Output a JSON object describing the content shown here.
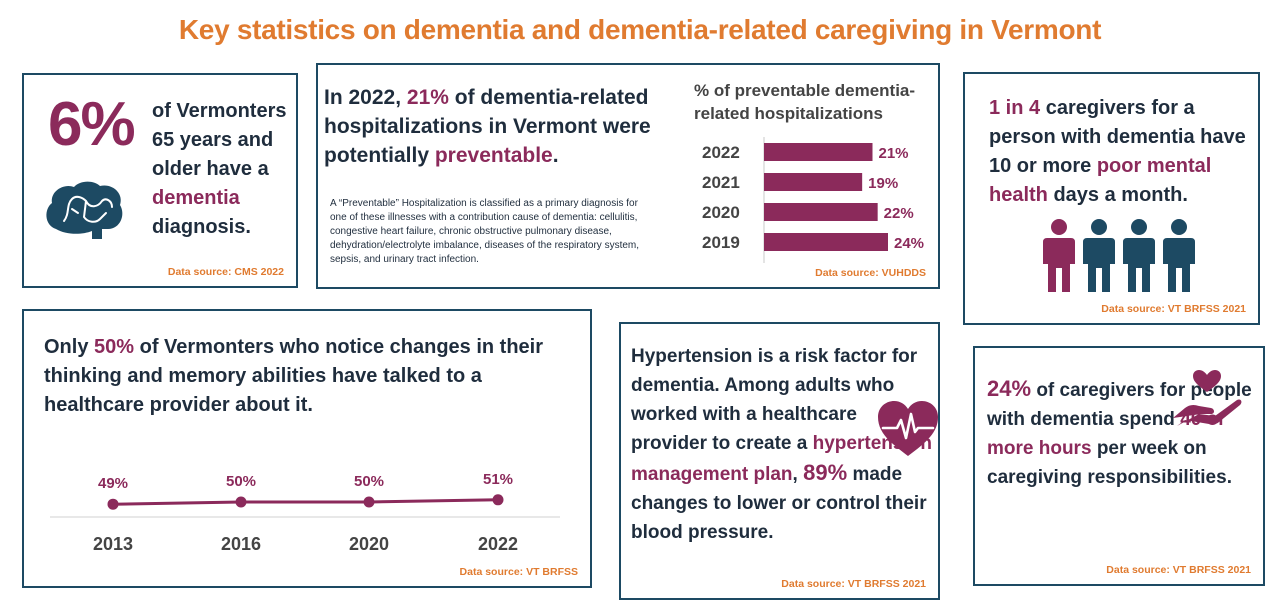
{
  "title": "Key statistics on dementia and dementia-related caregiving in Vermont",
  "colors": {
    "accent": "#e07b30",
    "plum": "#8b2a5b",
    "navy": "#1d4a63"
  },
  "card1": {
    "big": "6%",
    "l1": "of Vermonters",
    "l2": "65 years and",
    "l3": "older have a",
    "hl": "dementia",
    "l4": "diagnosis.",
    "icon": "brain-icon",
    "source": "Data source: CMS 2022"
  },
  "card2": {
    "h_pre": "In 2022,",
    "h_pct": "21%",
    "h_mid": "of dementia-related hospitalizations in Vermont were potentially",
    "h_hl": "preventable",
    "h_end": ".",
    "note": "A “Preventable” Hospitalization is classified as a primary diagnosis for one of these illnesses with a contribution cause of dementia: cellulitis, congestive heart failure, chronic obstructive pulmonary disease, dehydration/electrolyte imbalance, diseases of the respiratory system, sepsis, and urinary tract infection.",
    "chart_title": "% of preventable dementia-related hospitalizations",
    "source": "Data source: VUHDDS"
  },
  "card3": {
    "hl1": "1 in 4",
    "t1": "caregivers for a person with dementia have 10 or more",
    "hl2": "poor mental health",
    "t2": "days a month.",
    "icon": "people-icon",
    "source": "Data source: VT BRFSS 2021"
  },
  "card4": {
    "t1": "Only",
    "pct": "50%",
    "t2": "of Vermonters who notice changes in their thinking and memory abilities have talked to a healthcare provider about  it.",
    "source": "Data source: VT BRFSS"
  },
  "card5": {
    "t1": "Hypertension is a risk factor for dementia. Among adults who worked with a healthcare provider to create a",
    "hl": "hypertension management plan",
    "t2": ",",
    "pct": "89%",
    "t3": "made changes to lower or control their blood pressure.",
    "icon": "heart-pulse-icon",
    "source": "Data source: VT BRFSS 2021"
  },
  "card6": {
    "pct": "24%",
    "t1": "of caregivers for people with dementia spend",
    "hl": "40 or more hours",
    "t2": "per week on caregiving responsibilities.",
    "icon": "hand-heart-icon",
    "source": "Data source: VT BRFSS 2021"
  },
  "chart_data": [
    {
      "type": "bar",
      "orientation": "horizontal",
      "title": "% of preventable dementia-related hospitalizations",
      "categories": [
        "2022",
        "2021",
        "2020",
        "2019"
      ],
      "values": [
        21,
        19,
        22,
        24
      ],
      "labels": [
        "21%",
        "19%",
        "22%",
        "24%"
      ],
      "color": "#8b2a5b",
      "xlim": [
        0,
        30
      ]
    },
    {
      "type": "line",
      "categories": [
        "2013",
        "2016",
        "2020",
        "2022"
      ],
      "values": [
        49,
        50,
        50,
        51
      ],
      "labels": [
        "49%",
        "50%",
        "50%",
        "51%"
      ],
      "color": "#8b2a5b",
      "ylim": [
        0,
        100
      ]
    }
  ]
}
